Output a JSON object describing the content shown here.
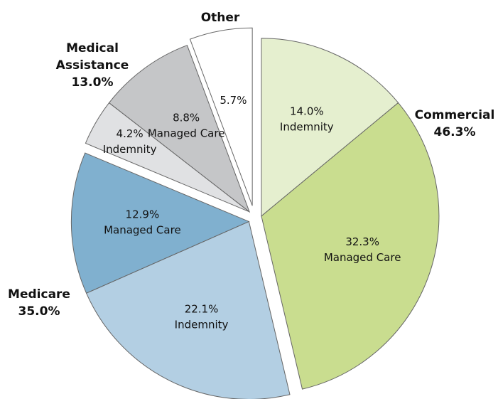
{
  "chart_data": {
    "type": "pie",
    "series": [
      {
        "name": "Commercial",
        "total": 46.3,
        "total_label": "46.3%",
        "categories": [
          "Indemnity",
          "Managed Care"
        ],
        "values": [
          14.0,
          32.3
        ],
        "value_labels": [
          "14.0%",
          "32.3%"
        ],
        "colors": [
          "#e5efcf",
          "#c9dd8f"
        ]
      },
      {
        "name": "Medicare",
        "total": 35.0,
        "total_label": "35.0%",
        "categories": [
          "Indemnity",
          "Managed Care"
        ],
        "values": [
          22.1,
          12.9
        ],
        "value_labels": [
          "22.1%",
          "12.9%"
        ],
        "colors": [
          "#b3cfe3",
          "#80b0cf"
        ]
      },
      {
        "name": "Medical Assistance",
        "total": 13.0,
        "total_label": "13.0%",
        "categories": [
          "Indemnity",
          "Managed Care"
        ],
        "values": [
          4.2,
          8.8
        ],
        "value_labels": [
          "4.2%",
          "8.8%"
        ],
        "colors": [
          "#e0e1e3",
          "#c5c6c8"
        ]
      },
      {
        "name": "Other",
        "categories": [
          null
        ],
        "values": [
          5.7
        ],
        "value_labels": [
          "5.7%"
        ],
        "colors": [
          "#ffffff"
        ]
      }
    ]
  }
}
